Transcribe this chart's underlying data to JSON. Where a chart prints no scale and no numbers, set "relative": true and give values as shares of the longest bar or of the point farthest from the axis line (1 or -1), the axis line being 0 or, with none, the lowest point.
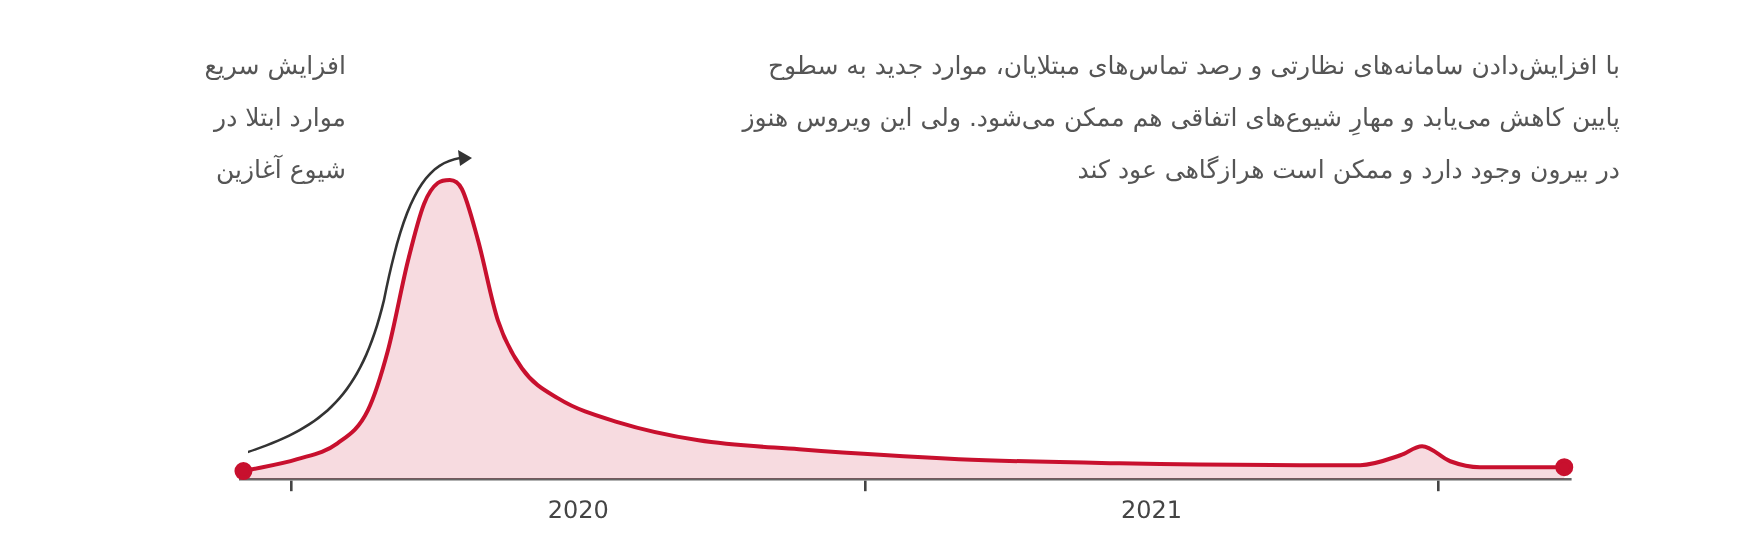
{
  "chart_data": {
    "type": "area",
    "relative": true,
    "grid": false,
    "legend": false,
    "x": [
      2019.916,
      2020.01,
      2020.08,
      2020.133,
      2020.168,
      2020.203,
      2020.231,
      2020.255,
      2020.276,
      2020.297,
      2020.325,
      2020.36,
      2020.402,
      2020.465,
      2020.57,
      2020.71,
      2020.885,
      2021.164,
      2021.444,
      2021.759,
      2021.864,
      2021.934,
      2021.972,
      2022.021,
      2022.073,
      2022.22
    ],
    "xlim": [
      2019.91,
      2022.23
    ],
    "xticks": [
      {
        "value": 2020,
        "label": null
      },
      {
        "value": 2020.5,
        "label": "2020"
      },
      {
        "value": 2021,
        "label": null
      },
      {
        "value": 2021.5,
        "label": "2021"
      },
      {
        "value": 2022,
        "label": null
      }
    ],
    "series": [
      {
        "color": "#c8102e",
        "values": [
          0.027,
          0.067,
          0.12,
          0.23,
          0.43,
          0.73,
          0.92,
          0.99,
          1,
          0.97,
          0.8,
          0.53,
          0.37,
          0.27,
          0.19,
          0.13,
          0.1,
          0.067,
          0.053,
          0.047,
          0.047,
          0.08,
          0.11,
          0.06,
          0.04,
          0.04
        ]
      }
    ],
    "annotations": [
      "افزایش سریع\nموارد ابتلا در\nشیوع آغازین",
      "با افزایش‌دادن سامانه‌های نظارتی و رصد تماس‌های مبتلایان، موارد جدید به سطوح\nپایین کاهش می‌یابد و مهارِ شیوع‌های اتفاقی هم ممکن می‌شود. ولی این ویروس هنوز\nدر بیرون وجود دارد و ممکن است هرازگاهی عود کند"
    ]
  }
}
